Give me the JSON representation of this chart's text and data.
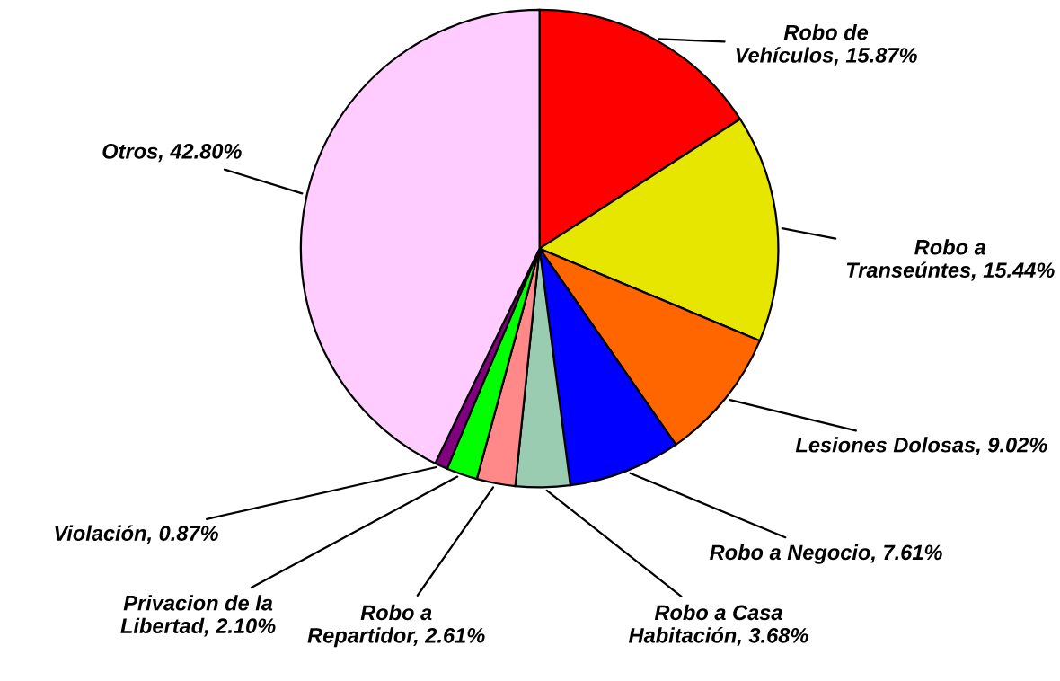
{
  "chart_data": {
    "type": "pie",
    "categories": [
      "Robo de\nVehículos",
      "Robo a\nTranseúntes",
      "Lesiones Dolosas",
      "Robo a Negocio",
      "Robo a Casa\nHabitación",
      "Robo a\nRepartidor",
      "Privacion de la\nLibertad",
      "Violación",
      "Otros"
    ],
    "values": [
      15.87,
      15.44,
      9.02,
      7.61,
      3.68,
      2.61,
      2.1,
      0.87,
      42.8
    ],
    "value_labels": [
      "15.87%",
      "15.44%",
      "9.02%",
      "7.61%",
      "3.68%",
      "2.61%",
      "2.10%",
      "0.87%",
      "42.80%"
    ],
    "colors": [
      "#ff0000",
      "#e6e600",
      "#ff6600",
      "#0000ff",
      "#99ccb0",
      "#ff8888",
      "#00ff00",
      "#800080",
      "#ffccff"
    ]
  }
}
